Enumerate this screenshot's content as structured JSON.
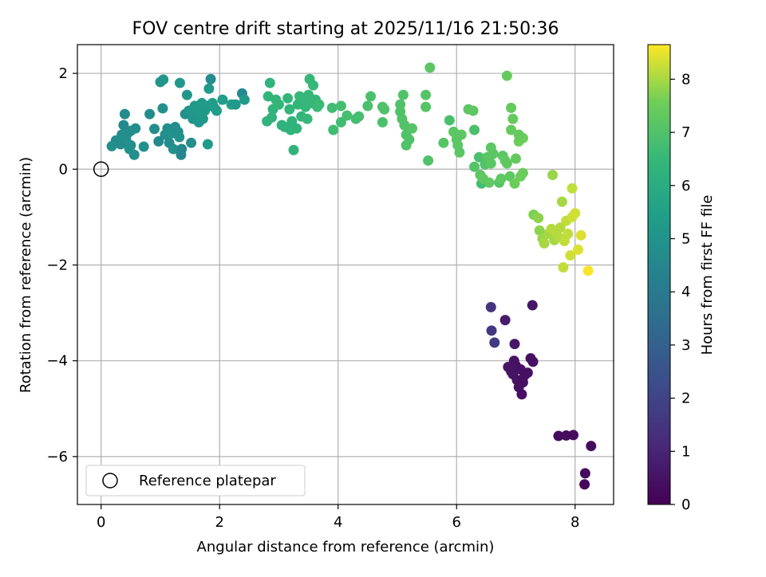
{
  "chart_data": {
    "type": "scatter",
    "title": "FOV centre drift starting at 2025/11/16 21:50:36",
    "xlabel": "Angular distance from reference (arcmin)",
    "ylabel": "Rotation from reference (arcmin)",
    "xlim": [
      -0.4,
      8.65
    ],
    "ylim": [
      -7.0,
      2.6
    ],
    "xticks": [
      0,
      2,
      4,
      6,
      8
    ],
    "yticks": [
      -6,
      -4,
      -2,
      0,
      2
    ],
    "grid": true,
    "colormap": "viridis",
    "colorbar": {
      "label": "Hours from first FF file",
      "range": [
        0,
        8.65
      ],
      "ticks": [
        0,
        1,
        2,
        3,
        4,
        5,
        6,
        7,
        8
      ]
    },
    "reference_marker": {
      "x": 0,
      "y": 0,
      "label": "Reference platepar"
    },
    "legend": {
      "placement": "lower-left",
      "entries": [
        "Reference platepar"
      ]
    },
    "points": [
      {
        "x": 6.58,
        "y": -2.88,
        "c": 1.5
      },
      {
        "x": 6.59,
        "y": -3.37,
        "c": 1.6
      },
      {
        "x": 6.64,
        "y": -3.62,
        "c": 1.7
      },
      {
        "x": 6.82,
        "y": -3.15,
        "c": 0.7
      },
      {
        "x": 7.28,
        "y": -2.84,
        "c": 0.6
      },
      {
        "x": 6.98,
        "y": -3.65,
        "c": 0.6
      },
      {
        "x": 6.87,
        "y": -4.13,
        "c": 0.55
      },
      {
        "x": 6.92,
        "y": -4.22,
        "c": 0.5
      },
      {
        "x": 6.97,
        "y": -4.0,
        "c": 0.5
      },
      {
        "x": 7.0,
        "y": -4.1,
        "c": 0.5
      },
      {
        "x": 6.95,
        "y": -4.28,
        "c": 0.5
      },
      {
        "x": 7.02,
        "y": -4.4,
        "c": 0.5
      },
      {
        "x": 7.05,
        "y": -4.55,
        "c": 0.45
      },
      {
        "x": 7.1,
        "y": -4.7,
        "c": 0.45
      },
      {
        "x": 7.08,
        "y": -4.18,
        "c": 0.45
      },
      {
        "x": 7.15,
        "y": -4.3,
        "c": 0.45
      },
      {
        "x": 7.25,
        "y": -3.95,
        "c": 0.45
      },
      {
        "x": 7.29,
        "y": -4.02,
        "c": 0.45
      },
      {
        "x": 7.2,
        "y": -4.25,
        "c": 0.45
      },
      {
        "x": 7.12,
        "y": -4.45,
        "c": 0.45
      },
      {
        "x": 7.72,
        "y": -5.57,
        "c": 0.3
      },
      {
        "x": 7.85,
        "y": -5.56,
        "c": 0.3
      },
      {
        "x": 7.97,
        "y": -5.55,
        "c": 0.3
      },
      {
        "x": 8.27,
        "y": -5.78,
        "c": 0.3
      },
      {
        "x": 8.17,
        "y": -6.35,
        "c": 0.25
      },
      {
        "x": 8.16,
        "y": -6.58,
        "c": 0.2
      },
      {
        "x": 0.18,
        "y": 0.48,
        "c": 4.8
      },
      {
        "x": 0.25,
        "y": 0.6,
        "c": 4.8
      },
      {
        "x": 0.33,
        "y": 0.52,
        "c": 4.7
      },
      {
        "x": 0.38,
        "y": 0.92,
        "c": 4.6
      },
      {
        "x": 0.4,
        "y": 1.15,
        "c": 4.7
      },
      {
        "x": 0.45,
        "y": 0.75,
        "c": 4.7
      },
      {
        "x": 0.42,
        "y": 0.62,
        "c": 4.8
      },
      {
        "x": 0.5,
        "y": 0.5,
        "c": 4.9
      },
      {
        "x": 0.5,
        "y": 0.8,
        "c": 4.8
      },
      {
        "x": 0.56,
        "y": 0.3,
        "c": 4.8
      },
      {
        "x": 0.58,
        "y": 0.85,
        "c": 4.8
      },
      {
        "x": 0.48,
        "y": 0.42,
        "c": 4.9
      },
      {
        "x": 0.35,
        "y": 0.72,
        "c": 4.8
      },
      {
        "x": 0.72,
        "y": 0.47,
        "c": 4.9
      },
      {
        "x": 0.82,
        "y": 1.15,
        "c": 4.7
      },
      {
        "x": 0.9,
        "y": 0.84,
        "c": 4.8
      },
      {
        "x": 1.0,
        "y": 1.82,
        "c": 5.1
      },
      {
        "x": 1.05,
        "y": 1.87,
        "c": 5.1
      },
      {
        "x": 1.04,
        "y": 1.27,
        "c": 4.9
      },
      {
        "x": 0.97,
        "y": 0.58,
        "c": 4.6
      },
      {
        "x": 1.08,
        "y": 0.72,
        "c": 4.8
      },
      {
        "x": 1.12,
        "y": 0.85,
        "c": 4.8
      },
      {
        "x": 1.15,
        "y": 0.55,
        "c": 4.7
      },
      {
        "x": 1.2,
        "y": 0.75,
        "c": 4.9
      },
      {
        "x": 1.22,
        "y": 0.42,
        "c": 4.9
      },
      {
        "x": 1.25,
        "y": 0.88,
        "c": 4.8
      },
      {
        "x": 1.3,
        "y": 0.78,
        "c": 4.8
      },
      {
        "x": 1.32,
        "y": 0.67,
        "c": 4.9
      },
      {
        "x": 1.35,
        "y": 0.3,
        "c": 4.5
      },
      {
        "x": 1.36,
        "y": 0.42,
        "c": 4.5
      },
      {
        "x": 1.33,
        "y": 1.8,
        "c": 5.2
      },
      {
        "x": 1.42,
        "y": 1.15,
        "c": 4.9
      },
      {
        "x": 1.45,
        "y": 1.55,
        "c": 5.1
      },
      {
        "x": 1.48,
        "y": 1.22,
        "c": 5.1
      },
      {
        "x": 1.52,
        "y": 0.55,
        "c": 4.8
      },
      {
        "x": 1.55,
        "y": 1.05,
        "c": 5.1
      },
      {
        "x": 1.58,
        "y": 1.32,
        "c": 5.2
      },
      {
        "x": 1.62,
        "y": 1.2,
        "c": 5.2
      },
      {
        "x": 1.65,
        "y": 0.98,
        "c": 5.1
      },
      {
        "x": 1.67,
        "y": 1.15,
        "c": 5.2
      },
      {
        "x": 1.7,
        "y": 1.38,
        "c": 5.3
      },
      {
        "x": 1.72,
        "y": 1.05,
        "c": 5.2
      },
      {
        "x": 1.75,
        "y": 1.22,
        "c": 5.2
      },
      {
        "x": 1.78,
        "y": 1.32,
        "c": 5.3
      },
      {
        "x": 1.8,
        "y": 0.52,
        "c": 5.3
      },
      {
        "x": 1.82,
        "y": 1.68,
        "c": 5.3
      },
      {
        "x": 1.85,
        "y": 1.88,
        "c": 4.7
      },
      {
        "x": 1.88,
        "y": 1.38,
        "c": 5.4
      },
      {
        "x": 1.9,
        "y": 1.3,
        "c": 5.4
      },
      {
        "x": 1.95,
        "y": 1.22,
        "c": 5.4
      },
      {
        "x": 2.05,
        "y": 1.45,
        "c": 5.4
      },
      {
        "x": 2.2,
        "y": 1.35,
        "c": 5.5
      },
      {
        "x": 2.27,
        "y": 1.35,
        "c": 5.2
      },
      {
        "x": 2.38,
        "y": 1.58,
        "c": 4.6
      },
      {
        "x": 2.42,
        "y": 1.45,
        "c": 5.3
      },
      {
        "x": 2.8,
        "y": 1.0,
        "c": 6.3
      },
      {
        "x": 2.82,
        "y": 1.52,
        "c": 6.4
      },
      {
        "x": 2.85,
        "y": 1.8,
        "c": 6.3
      },
      {
        "x": 2.88,
        "y": 1.08,
        "c": 6.3
      },
      {
        "x": 2.9,
        "y": 1.25,
        "c": 6.3
      },
      {
        "x": 2.95,
        "y": 1.45,
        "c": 6.4
      },
      {
        "x": 3.0,
        "y": 1.35,
        "c": 6.4
      },
      {
        "x": 3.05,
        "y": 0.92,
        "c": 6.3
      },
      {
        "x": 3.1,
        "y": 0.88,
        "c": 6.3
      },
      {
        "x": 3.15,
        "y": 1.48,
        "c": 6.4
      },
      {
        "x": 3.18,
        "y": 1.25,
        "c": 6.4
      },
      {
        "x": 3.2,
        "y": 0.82,
        "c": 6.3
      },
      {
        "x": 3.22,
        "y": 1.0,
        "c": 6.3
      },
      {
        "x": 3.25,
        "y": 0.4,
        "c": 6.3
      },
      {
        "x": 3.3,
        "y": 0.85,
        "c": 6.3
      },
      {
        "x": 3.32,
        "y": 1.35,
        "c": 6.4
      },
      {
        "x": 3.35,
        "y": 1.52,
        "c": 6.5
      },
      {
        "x": 3.38,
        "y": 1.1,
        "c": 6.4
      },
      {
        "x": 3.42,
        "y": 1.48,
        "c": 6.5
      },
      {
        "x": 3.45,
        "y": 1.3,
        "c": 6.5
      },
      {
        "x": 3.48,
        "y": 1.05,
        "c": 6.5
      },
      {
        "x": 3.5,
        "y": 1.55,
        "c": 6.5
      },
      {
        "x": 3.52,
        "y": 1.88,
        "c": 6.5
      },
      {
        "x": 3.55,
        "y": 1.38,
        "c": 6.5
      },
      {
        "x": 3.58,
        "y": 1.75,
        "c": 6.5
      },
      {
        "x": 3.62,
        "y": 1.45,
        "c": 6.5
      },
      {
        "x": 3.65,
        "y": 1.3,
        "c": 6.6
      },
      {
        "x": 3.68,
        "y": 1.35,
        "c": 6.6
      },
      {
        "x": 3.9,
        "y": 1.28,
        "c": 6.7
      },
      {
        "x": 3.92,
        "y": 0.82,
        "c": 6.7
      },
      {
        "x": 4.05,
        "y": 0.98,
        "c": 6.7
      },
      {
        "x": 4.05,
        "y": 1.32,
        "c": 6.8
      },
      {
        "x": 4.15,
        "y": 1.12,
        "c": 6.8
      },
      {
        "x": 4.3,
        "y": 1.05,
        "c": 6.8
      },
      {
        "x": 4.35,
        "y": 1.1,
        "c": 6.8
      },
      {
        "x": 4.5,
        "y": 1.32,
        "c": 6.9
      },
      {
        "x": 4.55,
        "y": 1.52,
        "c": 6.9
      },
      {
        "x": 4.75,
        "y": 0.98,
        "c": 6.9
      },
      {
        "x": 4.75,
        "y": 1.3,
        "c": 7.0
      },
      {
        "x": 4.78,
        "y": 1.25,
        "c": 7.0
      },
      {
        "x": 5.05,
        "y": 1.2,
        "c": 7.0
      },
      {
        "x": 5.05,
        "y": 1.35,
        "c": 7.0
      },
      {
        "x": 5.08,
        "y": 1.05,
        "c": 7.0
      },
      {
        "x": 5.1,
        "y": 1.55,
        "c": 7.0
      },
      {
        "x": 5.12,
        "y": 0.92,
        "c": 7.0
      },
      {
        "x": 5.15,
        "y": 0.72,
        "c": 7.0
      },
      {
        "x": 5.15,
        "y": 0.5,
        "c": 7.0
      },
      {
        "x": 5.2,
        "y": 0.62,
        "c": 7.0
      },
      {
        "x": 5.25,
        "y": 0.85,
        "c": 7.1
      },
      {
        "x": 5.48,
        "y": 1.3,
        "c": 7.1
      },
      {
        "x": 5.48,
        "y": 1.55,
        "c": 7.1
      },
      {
        "x": 5.52,
        "y": 0.18,
        "c": 7.0
      },
      {
        "x": 5.55,
        "y": 2.12,
        "c": 7.2
      },
      {
        "x": 5.78,
        "y": 0.55,
        "c": 7.1
      },
      {
        "x": 5.88,
        "y": 1.02,
        "c": 6.9
      },
      {
        "x": 5.95,
        "y": 0.78,
        "c": 7.2
      },
      {
        "x": 6.0,
        "y": 0.62,
        "c": 7.2
      },
      {
        "x": 6.02,
        "y": 0.5,
        "c": 7.2
      },
      {
        "x": 6.05,
        "y": 0.35,
        "c": 7.2
      },
      {
        "x": 6.08,
        "y": 0.72,
        "c": 7.2
      },
      {
        "x": 6.2,
        "y": 1.25,
        "c": 7.2
      },
      {
        "x": 6.28,
        "y": 1.22,
        "c": 7.3
      },
      {
        "x": 6.3,
        "y": 0.82,
        "c": 6.9
      },
      {
        "x": 6.3,
        "y": 0.05,
        "c": 7.1
      },
      {
        "x": 6.38,
        "y": 0.25,
        "c": 6.9
      },
      {
        "x": 6.4,
        "y": -0.12,
        "c": 7.2
      },
      {
        "x": 6.42,
        "y": -0.3,
        "c": 6.7
      },
      {
        "x": 6.45,
        "y": -0.2,
        "c": 7.3
      },
      {
        "x": 6.48,
        "y": 0.1,
        "c": 7.0
      },
      {
        "x": 6.52,
        "y": 0.25,
        "c": 7.2
      },
      {
        "x": 6.55,
        "y": -0.28,
        "c": 7.3
      },
      {
        "x": 6.58,
        "y": 0.12,
        "c": 7.2
      },
      {
        "x": 6.58,
        "y": 0.45,
        "c": 7.2
      },
      {
        "x": 6.62,
        "y": 0.32,
        "c": 7.2
      },
      {
        "x": 6.72,
        "y": -0.28,
        "c": 7.1
      },
      {
        "x": 6.75,
        "y": -0.2,
        "c": 7.3
      },
      {
        "x": 6.78,
        "y": 0.28,
        "c": 7.2
      },
      {
        "x": 6.82,
        "y": 0.18,
        "c": 7.3
      },
      {
        "x": 6.85,
        "y": 0.12,
        "c": 7.3
      },
      {
        "x": 6.85,
        "y": 1.95,
        "c": 7.4
      },
      {
        "x": 6.9,
        "y": -0.15,
        "c": 7.3
      },
      {
        "x": 6.92,
        "y": 1.28,
        "c": 7.4
      },
      {
        "x": 6.92,
        "y": 0.82,
        "c": 7.4
      },
      {
        "x": 6.95,
        "y": 1.05,
        "c": 7.4
      },
      {
        "x": 6.98,
        "y": -0.3,
        "c": 7.5
      },
      {
        "x": 7.0,
        "y": 0.22,
        "c": 7.4
      },
      {
        "x": 7.05,
        "y": 0.58,
        "c": 7.5
      },
      {
        "x": 7.08,
        "y": -0.15,
        "c": 7.5
      },
      {
        "x": 7.12,
        "y": 0.65,
        "c": 7.5
      },
      {
        "x": 7.12,
        "y": -0.08,
        "c": 7.5
      },
      {
        "x": 7.05,
        "y": 0.72,
        "c": 7.4
      },
      {
        "x": 7.3,
        "y": -0.95,
        "c": 7.7
      },
      {
        "x": 7.38,
        "y": -1.02,
        "c": 7.8
      },
      {
        "x": 7.4,
        "y": -1.28,
        "c": 7.8
      },
      {
        "x": 7.45,
        "y": -1.45,
        "c": 7.9
      },
      {
        "x": 7.48,
        "y": -1.55,
        "c": 8.0
      },
      {
        "x": 7.55,
        "y": -1.35,
        "c": 8.0
      },
      {
        "x": 7.6,
        "y": -1.25,
        "c": 8.1
      },
      {
        "x": 7.62,
        "y": -0.12,
        "c": 7.9
      },
      {
        "x": 7.65,
        "y": -1.48,
        "c": 8.0
      },
      {
        "x": 7.68,
        "y": -1.3,
        "c": 8.1
      },
      {
        "x": 7.72,
        "y": -1.42,
        "c": 8.1
      },
      {
        "x": 7.75,
        "y": -1.22,
        "c": 8.1
      },
      {
        "x": 7.78,
        "y": -0.68,
        "c": 8.0
      },
      {
        "x": 7.8,
        "y": -2.05,
        "c": 8.2
      },
      {
        "x": 7.82,
        "y": -1.5,
        "c": 8.2
      },
      {
        "x": 7.85,
        "y": -1.08,
        "c": 8.2
      },
      {
        "x": 7.88,
        "y": -1.35,
        "c": 8.2
      },
      {
        "x": 7.92,
        "y": -1.8,
        "c": 8.3
      },
      {
        "x": 7.95,
        "y": -0.4,
        "c": 8.2
      },
      {
        "x": 7.95,
        "y": -1.0,
        "c": 8.3
      },
      {
        "x": 8.0,
        "y": -0.92,
        "c": 8.3
      },
      {
        "x": 8.05,
        "y": -1.68,
        "c": 8.4
      },
      {
        "x": 8.1,
        "y": -1.38,
        "c": 8.4
      },
      {
        "x": 8.22,
        "y": -2.12,
        "c": 8.6
      }
    ]
  }
}
